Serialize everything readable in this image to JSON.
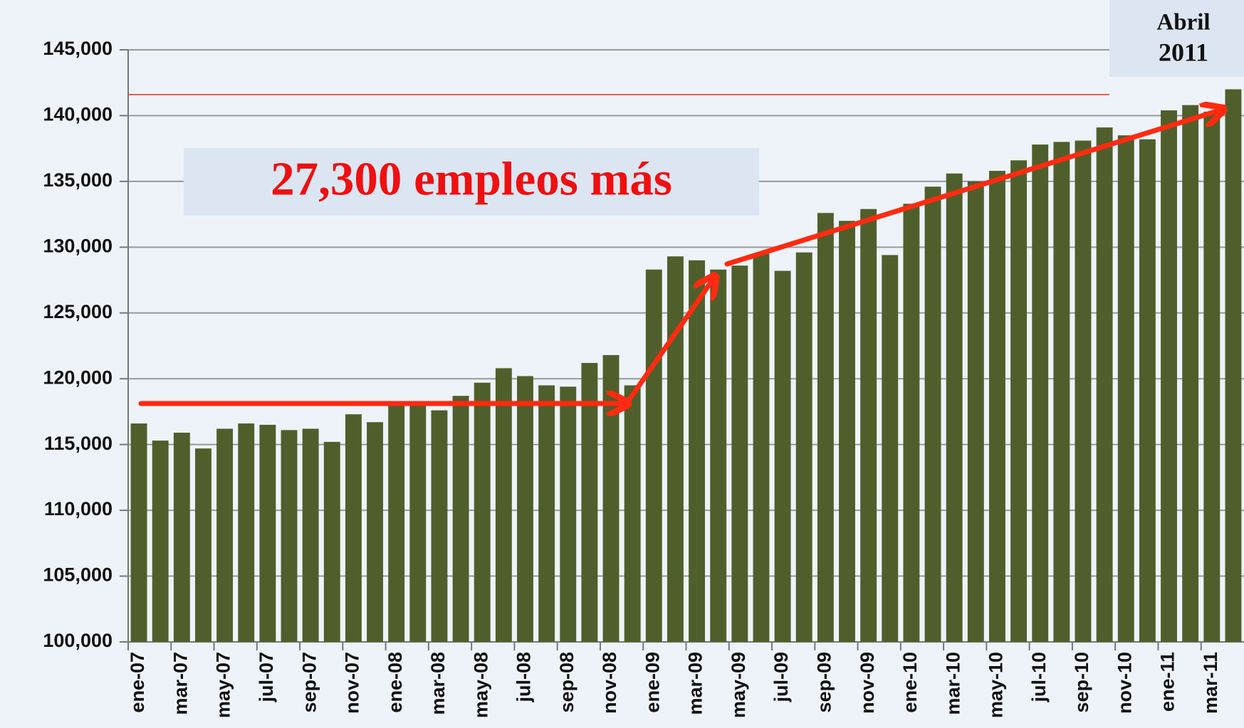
{
  "chart_data": {
    "type": "bar",
    "categories": [
      "ene-07",
      null,
      "mar-07",
      null,
      "may-07",
      null,
      "jul-07",
      null,
      "sep-07",
      null,
      "nov-07",
      null,
      "ene-08",
      null,
      "mar-08",
      null,
      "may-08",
      null,
      "jul-08",
      null,
      "sep-08",
      null,
      "nov-08",
      null,
      "ene-09",
      null,
      "mar-09",
      null,
      "may-09",
      null,
      "jul-09",
      null,
      "sep-09",
      null,
      "nov-09",
      null,
      "ene-10",
      null,
      "mar-10",
      null,
      "may-10",
      null,
      "jul-10",
      null,
      "sep-10",
      null,
      "nov-10",
      null,
      "ene-11",
      null,
      "mar-11",
      null
    ],
    "values": [
      116600,
      115300,
      115900,
      114700,
      116200,
      116600,
      116500,
      116100,
      116200,
      115200,
      117300,
      116700,
      118000,
      118000,
      117600,
      118700,
      119700,
      120800,
      120200,
      119500,
      119400,
      121200,
      121800,
      119500,
      128300,
      129300,
      129000,
      128300,
      128600,
      129500,
      128200,
      129600,
      132600,
      132000,
      132900,
      129400,
      133300,
      134600,
      135600,
      135000,
      135800,
      136600,
      137800,
      138000,
      138100,
      139100,
      138500,
      138200,
      140400,
      140800,
      140300,
      142000
    ],
    "color": "#4f5f2b",
    "ylim": [
      100000,
      145000
    ],
    "yticks": [
      {
        "value": 100000,
        "label": "100,000"
      },
      {
        "value": 105000,
        "label": "105,000"
      },
      {
        "value": 110000,
        "label": "110,000"
      },
      {
        "value": 115000,
        "label": "115,000"
      },
      {
        "value": 120000,
        "label": "120,000"
      },
      {
        "value": 125000,
        "label": "125,000"
      },
      {
        "value": 130000,
        "label": "130,000"
      },
      {
        "value": 135000,
        "label": "135,000"
      },
      {
        "value": 140000,
        "label": "140,000"
      },
      {
        "value": 145000,
        "label": "145,000"
      }
    ],
    "grid": true,
    "reference_line": 141600,
    "annotation": "27,300 empleos más",
    "corner_label": [
      "Abril",
      "2011"
    ]
  }
}
